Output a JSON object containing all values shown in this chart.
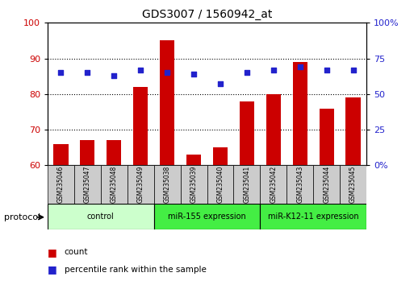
{
  "title": "GDS3007 / 1560942_at",
  "samples": [
    "GSM235046",
    "GSM235047",
    "GSM235048",
    "GSM235049",
    "GSM235038",
    "GSM235039",
    "GSM235040",
    "GSM235041",
    "GSM235042",
    "GSM235043",
    "GSM235044",
    "GSM235045"
  ],
  "count_values": [
    66,
    67,
    67,
    82,
    95,
    63,
    65,
    78,
    80,
    89,
    76,
    79
  ],
  "pct_right_values": [
    65,
    65,
    63,
    67,
    65,
    64,
    57,
    65,
    67,
    69,
    67,
    67
  ],
  "ylim_left": [
    60,
    100
  ],
  "ylim_right": [
    0,
    100
  ],
  "yticks_left": [
    60,
    70,
    80,
    90,
    100
  ],
  "ytick_left_labels": [
    "60",
    "70",
    "80",
    "90",
    "100"
  ],
  "yticks_right": [
    0,
    25,
    50,
    75,
    100
  ],
  "ytick_right_labels": [
    "0%",
    "25",
    "50",
    "75",
    "100%"
  ],
  "bar_color": "#cc0000",
  "dot_color": "#2222cc",
  "group_configs": [
    {
      "start": 0,
      "end": 4,
      "color": "#ccffcc",
      "label": "control"
    },
    {
      "start": 4,
      "end": 8,
      "color": "#44ee44",
      "label": "miR-155 expression"
    },
    {
      "start": 8,
      "end": 12,
      "color": "#44ee44",
      "label": "miR-K12-11 expression"
    }
  ],
  "protocol_label": "protocol",
  "legend_count_label": "count",
  "legend_pct_label": "percentile rank within the sample",
  "tick_label_color_left": "#cc0000",
  "tick_label_color_right": "#2222cc",
  "sample_box_color": "#cccccc",
  "dot_size": 20,
  "bar_width": 0.55
}
